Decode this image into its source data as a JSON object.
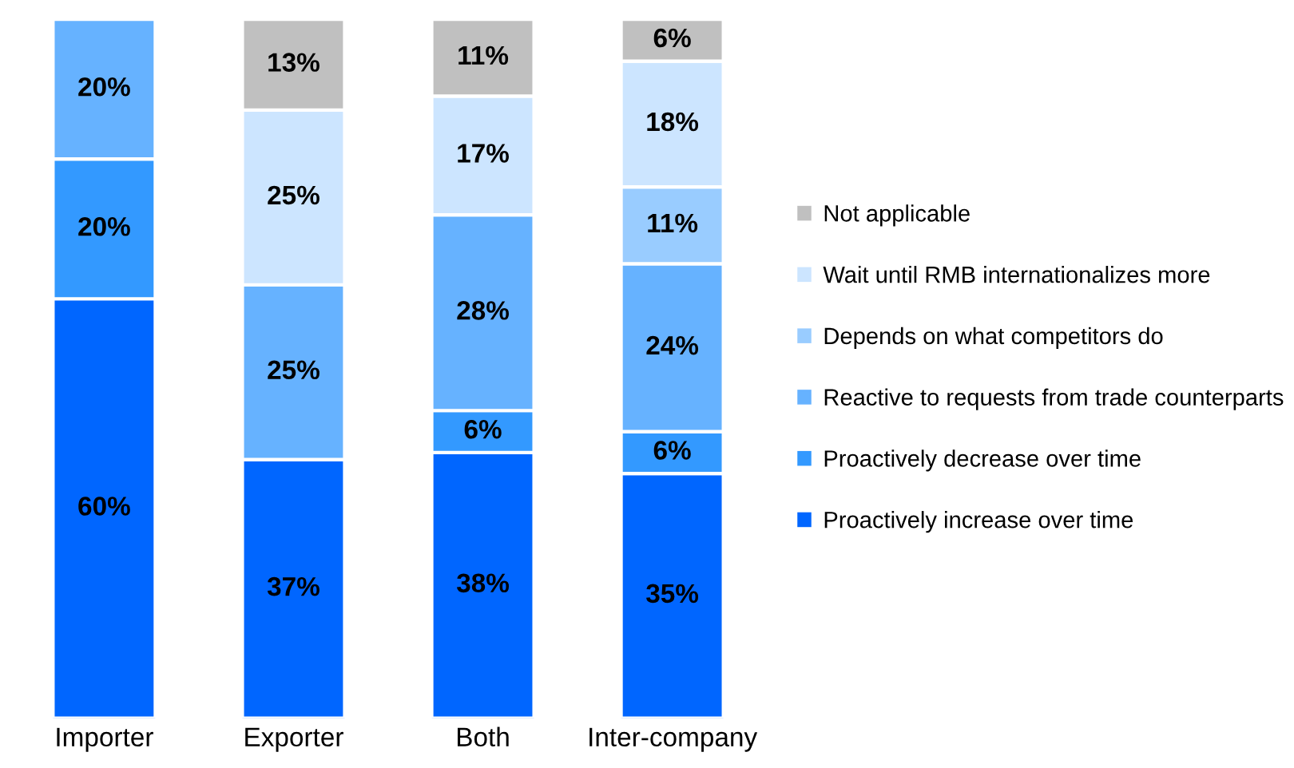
{
  "chart_data": {
    "type": "bar",
    "stacked": true,
    "legend": "right",
    "grid": false,
    "categories": [
      "Importer",
      "Exporter",
      "Both",
      "Inter-company"
    ],
    "series": [
      {
        "name": "Proactively increase over time",
        "color": "#0066ff",
        "values": [
          60,
          37,
          38,
          35
        ],
        "value_labels": [
          "60%",
          "37%",
          "38%",
          "35%"
        ]
      },
      {
        "name": "Proactively decrease over time",
        "color": "#3399ff",
        "values": [
          20,
          null,
          6,
          6
        ],
        "value_labels": [
          "20%",
          null,
          "6%",
          "6%"
        ]
      },
      {
        "name": "Reactive to requests from trade counterparts",
        "color": "#66b2ff",
        "values": [
          20,
          25,
          28,
          24
        ],
        "value_labels": [
          "20%",
          "25%",
          "28%",
          "24%"
        ]
      },
      {
        "name": "Depends on what competitors do",
        "color": "#99ccff",
        "values": [
          null,
          null,
          null,
          11
        ],
        "value_labels": [
          null,
          null,
          null,
          "11%"
        ]
      },
      {
        "name": "Wait until RMB internationalizes more",
        "color": "#cce5ff",
        "values": [
          null,
          25,
          17,
          18
        ],
        "value_labels": [
          null,
          "25%",
          "17%",
          "18%"
        ]
      },
      {
        "name": "Not applicable",
        "color": "#c0c0c0",
        "values": [
          null,
          13,
          11,
          6
        ],
        "value_labels": [
          null,
          "13%",
          "11%",
          "6%"
        ]
      }
    ]
  }
}
